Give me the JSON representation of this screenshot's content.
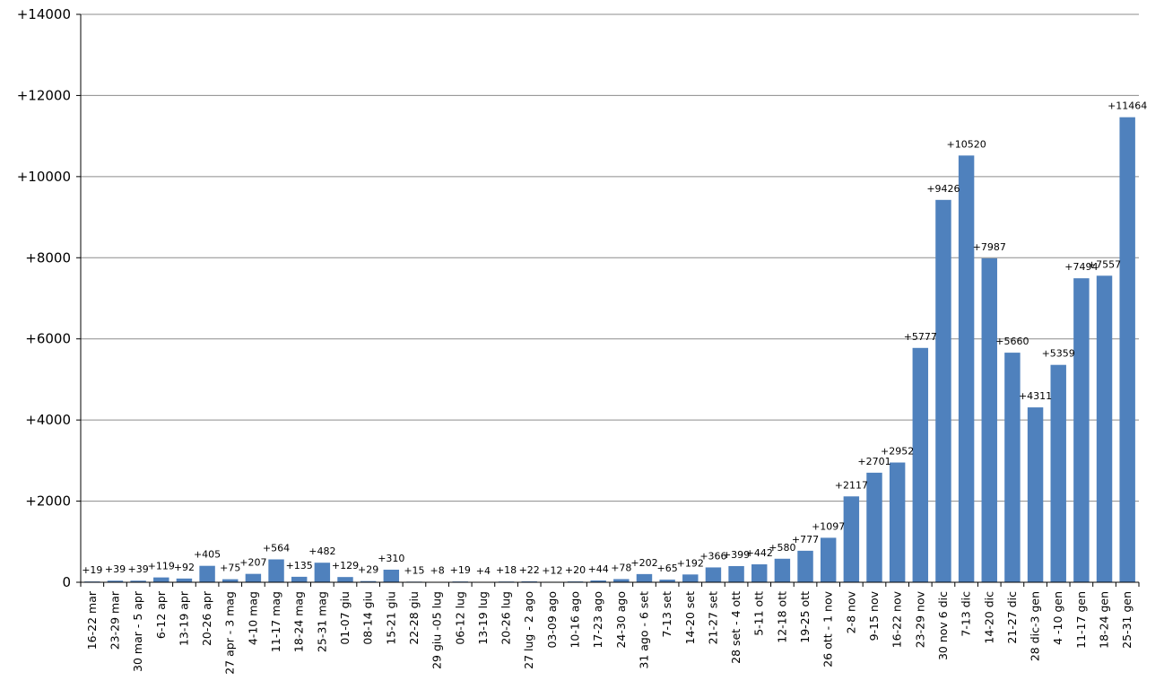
{
  "chart_data": {
    "type": "bar",
    "title": "",
    "xlabel": "",
    "ylabel": "",
    "ylim": [
      0,
      14000
    ],
    "yticks": [
      0,
      2000,
      4000,
      6000,
      8000,
      10000,
      12000,
      14000
    ],
    "ytick_labels": [
      "0",
      "+2000",
      "+4000",
      "+6000",
      "+8000",
      "+10000",
      "+12000",
      "+14000"
    ],
    "grid": true,
    "legend": "none",
    "bar_color": "#4f81bd",
    "categories": [
      "16-22 mar",
      "23-29 mar",
      "30 mar - 5 apr",
      "6-12 apr",
      "13-19 apr",
      "20-26 apr",
      "27 apr - 3 mag",
      "4-10 mag",
      "11-17 mag",
      "18-24 mag",
      "25-31 mag",
      "01-07 giu",
      "08-14 giu",
      "15-21 giu",
      "22-28 giu",
      "29 giu -05 lug",
      "06-12 lug",
      "13-19 lug",
      "20-26 lug",
      "27 lug - 2 ago",
      "03-09 ago",
      "10-16 ago",
      "17-23 ago",
      "24-30 ago",
      "31 ago - 6 set",
      "7-13 set",
      "14-20 set",
      "21-27 set",
      "28 set - 4 ott",
      "5-11 ott",
      "12-18 ott",
      "19-25 ott",
      "26 ott - 1 nov",
      "2-8 nov",
      "9-15 nov",
      "16-22 nov",
      "23-29 nov",
      "30 nov 6 dic",
      "7-13 dic",
      "14-20 dic",
      "21-27 dic",
      "28 dic-3 gen",
      "4 -10 gen",
      "11-17 gen",
      "18-24 gen",
      "25-31 gen"
    ],
    "values": [
      19,
      39,
      39,
      119,
      92,
      405,
      75,
      207,
      564,
      135,
      482,
      129,
      29,
      310,
      15,
      8,
      19,
      4,
      18,
      22,
      12,
      20,
      44,
      78,
      202,
      65,
      192,
      366,
      399,
      442,
      580,
      777,
      1097,
      2117,
      2701,
      2952,
      5777,
      9426,
      10520,
      7987,
      5660,
      4311,
      5359,
      7494,
      7557,
      11464
    ],
    "data_labels": [
      "+19",
      "+39",
      "+39",
      "+119",
      "+92",
      "+405",
      "+75",
      "+207",
      "+564",
      "+135",
      "+482",
      "+129",
      "+29",
      "+310",
      "+15",
      "+8",
      "+19",
      "+4",
      "+18",
      "+22",
      "+12",
      "+20",
      "+44",
      "+78",
      "+202",
      "+65",
      "+192",
      "+366",
      "+399",
      "+442",
      "+580",
      "+777",
      "+1097",
      "+2117",
      "+2701",
      "+2952",
      "+5777",
      "+9426",
      "+10520",
      "+7987",
      "+5660",
      "+4311",
      "+5359",
      "+7494",
      "+7557",
      "+11464"
    ]
  }
}
